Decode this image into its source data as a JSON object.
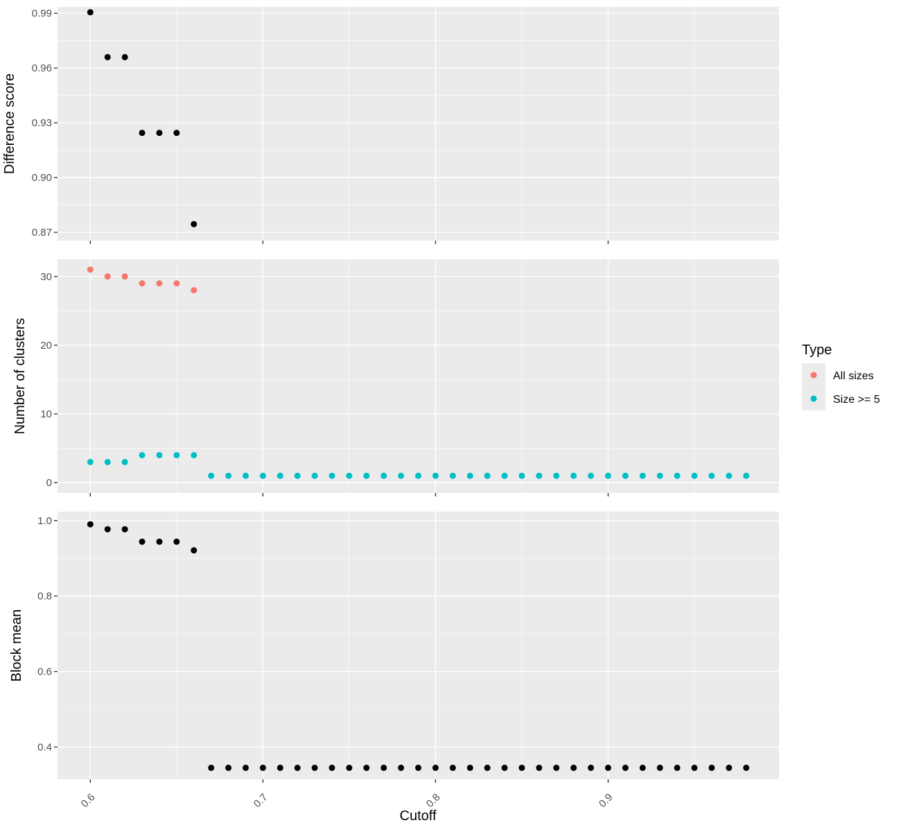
{
  "chart_data": {
    "type": "scatter",
    "xlabel": "Cutoff",
    "x_ticks": [
      0.6,
      0.7,
      0.8,
      0.9
    ],
    "x_tick_labels": [
      "0.6",
      "0.7",
      "0.8",
      "0.9"
    ],
    "xlim": [
      0.581,
      0.999
    ],
    "grid": true,
    "legend": {
      "title": "Type",
      "placement": "right",
      "entries": [
        {
          "label": "All sizes",
          "color": "#F8766D"
        },
        {
          "label": "Size >= 5",
          "color": "#00BFC4"
        }
      ]
    },
    "panels": [
      {
        "ylabel": "Difference score",
        "ylim": [
          0.8655,
          0.9935
        ],
        "y_ticks": [
          0.87,
          0.9,
          0.93,
          0.96,
          0.99
        ],
        "y_tick_labels": [
          "0.87",
          "0.90",
          "0.93",
          "0.96",
          "0.99"
        ],
        "series": [
          {
            "color": "#000000",
            "points": [
              [
                0.6,
                0.9906
              ],
              [
                0.61,
                0.966
              ],
              [
                0.62,
                0.966
              ],
              [
                0.63,
                0.9245
              ],
              [
                0.64,
                0.9245
              ],
              [
                0.65,
                0.9245
              ],
              [
                0.66,
                0.8745
              ]
            ]
          }
        ]
      },
      {
        "ylabel": "Number of clusters",
        "ylim": [
          -1.5,
          32.5
        ],
        "y_ticks": [
          0,
          10,
          20,
          30
        ],
        "y_tick_labels": [
          "0",
          "10",
          "20",
          "30"
        ],
        "series": [
          {
            "name": "All sizes",
            "color": "#F8766D",
            "points": [
              [
                0.6,
                31
              ],
              [
                0.61,
                30
              ],
              [
                0.62,
                30
              ],
              [
                0.63,
                29
              ],
              [
                0.64,
                29
              ],
              [
                0.65,
                29
              ],
              [
                0.66,
                28
              ]
            ]
          },
          {
            "name": "Size >= 5",
            "color": "#00BFC4",
            "points": [
              [
                0.6,
                3
              ],
              [
                0.61,
                3
              ],
              [
                0.62,
                3
              ],
              [
                0.63,
                4
              ],
              [
                0.64,
                4
              ],
              [
                0.65,
                4
              ],
              [
                0.66,
                4
              ],
              [
                0.67,
                1
              ],
              [
                0.68,
                1
              ],
              [
                0.69,
                1
              ],
              [
                0.7,
                1
              ],
              [
                0.71,
                1
              ],
              [
                0.72,
                1
              ],
              [
                0.73,
                1
              ],
              [
                0.74,
                1
              ],
              [
                0.75,
                1
              ],
              [
                0.76,
                1
              ],
              [
                0.77,
                1
              ],
              [
                0.78,
                1
              ],
              [
                0.79,
                1
              ],
              [
                0.8,
                1
              ],
              [
                0.81,
                1
              ],
              [
                0.82,
                1
              ],
              [
                0.83,
                1
              ],
              [
                0.84,
                1
              ],
              [
                0.85,
                1
              ],
              [
                0.86,
                1
              ],
              [
                0.87,
                1
              ],
              [
                0.88,
                1
              ],
              [
                0.89,
                1
              ],
              [
                0.9,
                1
              ],
              [
                0.91,
                1
              ],
              [
                0.92,
                1
              ],
              [
                0.93,
                1
              ],
              [
                0.94,
                1
              ],
              [
                0.95,
                1
              ],
              [
                0.96,
                1
              ],
              [
                0.97,
                1
              ],
              [
                0.98,
                1
              ]
            ]
          }
        ]
      },
      {
        "ylabel": "Block mean",
        "ylim": [
          0.3145,
          1.0235
        ],
        "y_ticks": [
          0.4,
          0.6,
          0.8,
          1.0
        ],
        "y_tick_labels": [
          "0.4",
          "0.6",
          "0.8",
          "1.0"
        ],
        "series": [
          {
            "color": "#000000",
            "points": [
              [
                0.6,
                0.99
              ],
              [
                0.61,
                0.977
              ],
              [
                0.62,
                0.977
              ],
              [
                0.63,
                0.944
              ],
              [
                0.64,
                0.944
              ],
              [
                0.65,
                0.944
              ],
              [
                0.66,
                0.921
              ],
              [
                0.67,
                0.345
              ],
              [
                0.68,
                0.345
              ],
              [
                0.69,
                0.345
              ],
              [
                0.7,
                0.345
              ],
              [
                0.71,
                0.345
              ],
              [
                0.72,
                0.345
              ],
              [
                0.73,
                0.345
              ],
              [
                0.74,
                0.345
              ],
              [
                0.75,
                0.345
              ],
              [
                0.76,
                0.345
              ],
              [
                0.77,
                0.345
              ],
              [
                0.78,
                0.345
              ],
              [
                0.79,
                0.345
              ],
              [
                0.8,
                0.345
              ],
              [
                0.81,
                0.345
              ],
              [
                0.82,
                0.345
              ],
              [
                0.83,
                0.345
              ],
              [
                0.84,
                0.345
              ],
              [
                0.85,
                0.345
              ],
              [
                0.86,
                0.345
              ],
              [
                0.87,
                0.345
              ],
              [
                0.88,
                0.345
              ],
              [
                0.89,
                0.345
              ],
              [
                0.9,
                0.345
              ],
              [
                0.91,
                0.345
              ],
              [
                0.92,
                0.345
              ],
              [
                0.93,
                0.345
              ],
              [
                0.94,
                0.345
              ],
              [
                0.95,
                0.345
              ],
              [
                0.96,
                0.345
              ],
              [
                0.97,
                0.345
              ],
              [
                0.98,
                0.345
              ]
            ]
          }
        ]
      }
    ]
  }
}
